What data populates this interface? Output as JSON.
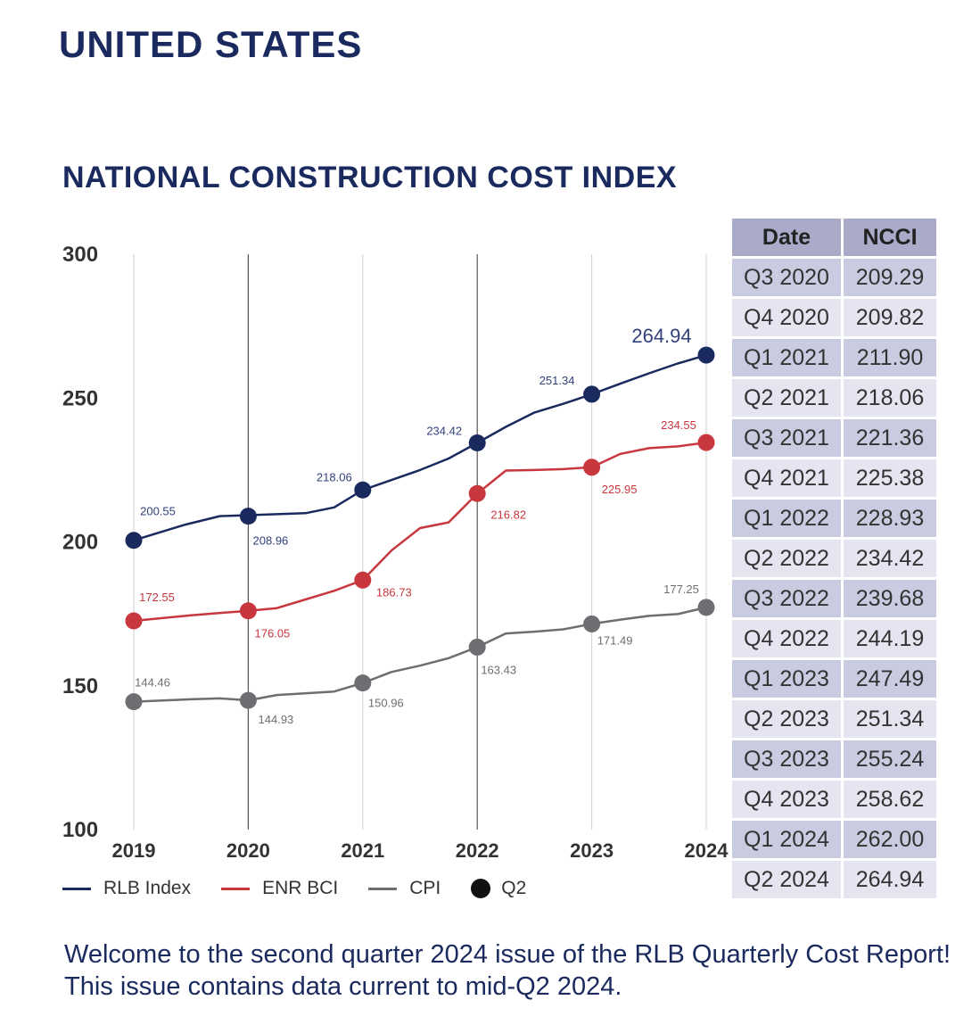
{
  "page": {
    "heading": "UNITED STATES",
    "footer": "Welcome to the second quarter 2024 issue of the RLB Quarterly Cost Report!  This issue contains data current to mid-Q2 2024."
  },
  "chart_data": {
    "type": "line",
    "title": "NATIONAL CONSTRUCTION COST INDEX",
    "xlabel": "",
    "ylabel": "",
    "categories": [
      "2019",
      "2020",
      "2021",
      "2022",
      "2023",
      "2024"
    ],
    "ylim": [
      100,
      300
    ],
    "yticks": [
      100,
      150,
      200,
      250,
      300
    ],
    "grid": "vertical",
    "legend_position": "bottom",
    "series": [
      {
        "name": "RLB Index",
        "color": "#1b2a5e",
        "values": [
          200.55,
          208.96,
          218.06,
          234.42,
          251.34,
          264.94
        ],
        "path": [
          [
            0,
            200.55
          ],
          [
            0.45,
            206
          ],
          [
            0.75,
            208.96
          ],
          [
            1.5,
            210
          ],
          [
            1.75,
            212
          ],
          [
            2,
            218.06
          ],
          [
            2.5,
            225
          ],
          [
            2.75,
            229
          ],
          [
            3,
            234.42
          ],
          [
            3.25,
            240
          ],
          [
            3.5,
            245
          ],
          [
            3.75,
            248
          ],
          [
            4,
            251.34
          ],
          [
            4.25,
            255
          ],
          [
            4.5,
            258.62
          ],
          [
            4.75,
            262
          ],
          [
            5,
            264.94
          ]
        ]
      },
      {
        "name": "ENR BCI",
        "color": "#c8373e",
        "values": [
          172.55,
          176.05,
          186.73,
          216.82,
          225.95,
          234.55
        ],
        "path": [
          [
            0,
            172.55
          ],
          [
            0.5,
            174.5
          ],
          [
            1,
            176.05
          ],
          [
            1.25,
            177
          ],
          [
            1.5,
            180
          ],
          [
            1.75,
            183
          ],
          [
            2,
            186.73
          ],
          [
            2.25,
            197
          ],
          [
            2.5,
            204.8
          ],
          [
            2.75,
            206.8
          ],
          [
            3,
            216.82
          ],
          [
            3.25,
            224.8
          ],
          [
            3.5,
            225
          ],
          [
            3.75,
            225.3
          ],
          [
            4,
            225.95
          ],
          [
            4.25,
            230.6
          ],
          [
            4.5,
            232.6
          ],
          [
            4.75,
            233.2
          ],
          [
            5,
            234.55
          ]
        ]
      },
      {
        "name": "CPI",
        "color": "#6d6e71",
        "values": [
          144.46,
          144.93,
          150.96,
          163.43,
          171.49,
          177.25
        ],
        "path": [
          [
            0,
            144.46
          ],
          [
            0.5,
            145.3
          ],
          [
            0.75,
            145.6
          ],
          [
            1,
            144.93
          ],
          [
            1.25,
            146.8
          ],
          [
            1.75,
            148
          ],
          [
            2,
            150.96
          ],
          [
            2.25,
            154.8
          ],
          [
            2.5,
            157
          ],
          [
            2.75,
            159.6
          ],
          [
            3,
            163.43
          ],
          [
            3.25,
            168.2
          ],
          [
            3.5,
            168.8
          ],
          [
            3.75,
            169.6
          ],
          [
            4,
            171.49
          ],
          [
            4.25,
            173
          ],
          [
            4.5,
            174.3
          ],
          [
            4.75,
            174.9
          ],
          [
            5,
            177.25
          ]
        ]
      }
    ],
    "data_labels": {
      "RLB Index": [
        "200.55",
        "208.96",
        "218.06",
        "234.42",
        "251.34",
        "264.94"
      ],
      "ENR BCI": [
        "172.55",
        "176.05",
        "186.73",
        "216.82",
        "225.95",
        "234.55"
      ],
      "CPI": [
        "144.46",
        "144.93",
        "150.96",
        "163.43",
        "171.49",
        "177.25"
      ]
    },
    "legend": [
      {
        "label": "RLB Index",
        "kind": "line",
        "color": "#1b2a5e"
      },
      {
        "label": "ENR BCI",
        "kind": "line",
        "color": "#c8373e"
      },
      {
        "label": "CPI",
        "kind": "line",
        "color": "#6d6e71"
      },
      {
        "label": "Q2",
        "kind": "dot",
        "color": "#111111"
      }
    ]
  },
  "table": {
    "headers": [
      "Date",
      "NCCI"
    ],
    "rows": [
      [
        "Q3 2020",
        "209.29"
      ],
      [
        "Q4 2020",
        "209.82"
      ],
      [
        "Q1 2021",
        "211.90"
      ],
      [
        "Q2 2021",
        "218.06"
      ],
      [
        "Q3 2021",
        "221.36"
      ],
      [
        "Q4 2021",
        "225.38"
      ],
      [
        "Q1 2022",
        "228.93"
      ],
      [
        "Q2 2022",
        "234.42"
      ],
      [
        "Q3 2022",
        "239.68"
      ],
      [
        "Q4 2022",
        "244.19"
      ],
      [
        "Q1 2023",
        "247.49"
      ],
      [
        "Q2 2023",
        "251.34"
      ],
      [
        "Q3 2023",
        "255.24"
      ],
      [
        "Q4 2023",
        "258.62"
      ],
      [
        "Q1 2024",
        "262.00"
      ],
      [
        "Q2 2024",
        "264.94"
      ]
    ]
  }
}
